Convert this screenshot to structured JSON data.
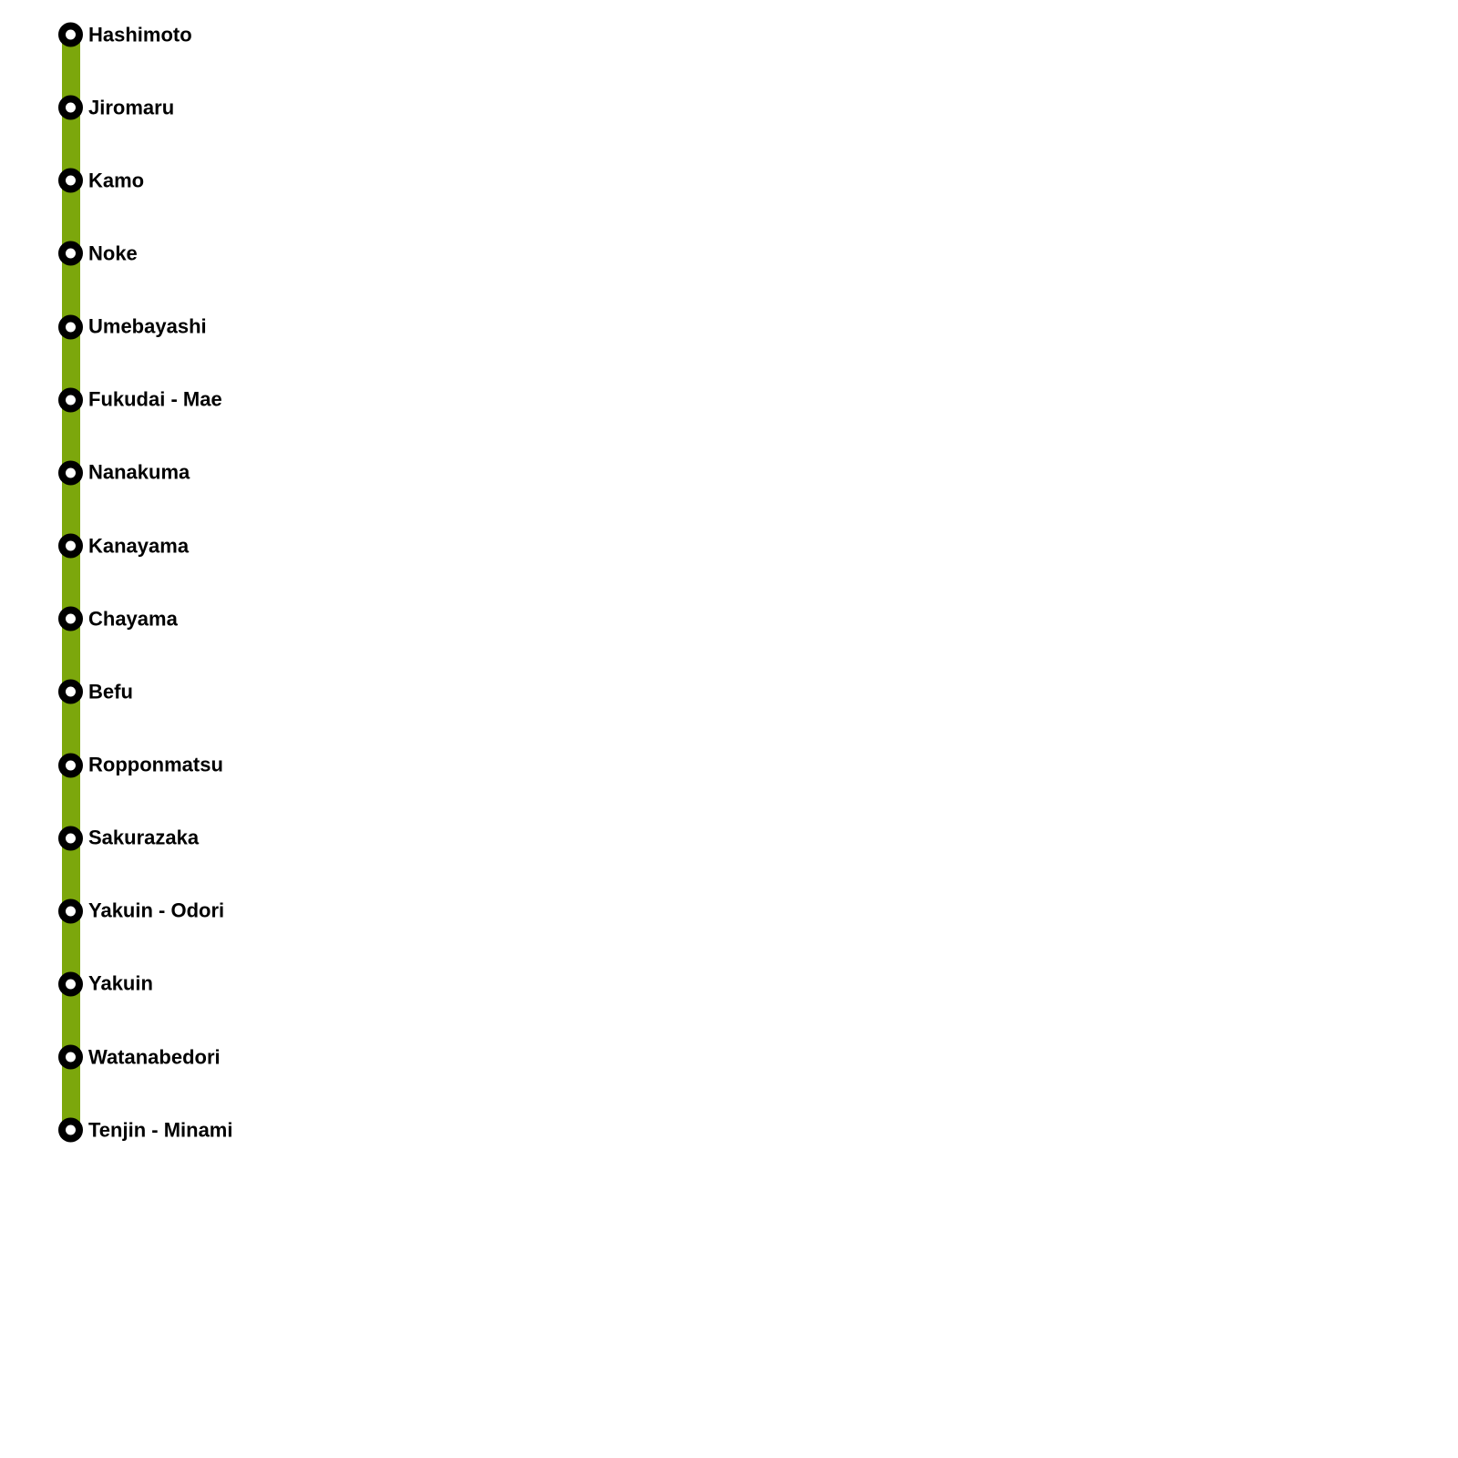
{
  "map": {
    "background_color": "#ffffff",
    "line": {
      "color": "#7CA70C",
      "marker": {
        "ring_color": "#000000",
        "fill_color": "#ffffff"
      },
      "stations": [
        {
          "label": "Hashimoto"
        },
        {
          "label": "Jiromaru"
        },
        {
          "label": "Kamo"
        },
        {
          "label": "Noke"
        },
        {
          "label": "Umebayashi"
        },
        {
          "label": "Fukudai - Mae"
        },
        {
          "label": "Nanakuma"
        },
        {
          "label": "Kanayama"
        },
        {
          "label": "Chayama"
        },
        {
          "label": "Befu"
        },
        {
          "label": "Ropponmatsu"
        },
        {
          "label": "Sakurazaka"
        },
        {
          "label": "Yakuin - Odori"
        },
        {
          "label": "Yakuin"
        },
        {
          "label": "Watanabedori"
        },
        {
          "label": "Tenjin - Minami"
        }
      ]
    }
  }
}
